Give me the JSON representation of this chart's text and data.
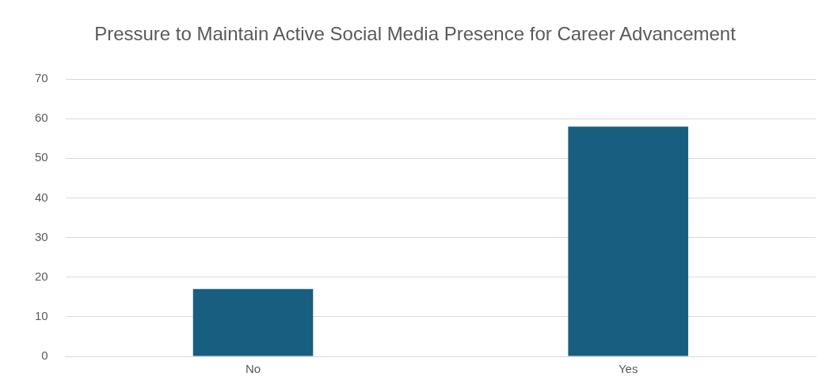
{
  "chart_data": {
    "type": "bar",
    "title": "Pressure to Maintain Active Social Media Presence for Career Advancement",
    "categories": [
      "No",
      "Yes"
    ],
    "values": [
      17,
      58
    ],
    "color": "#175e80",
    "ylim": [
      0,
      70
    ],
    "yticks": [
      0,
      10,
      20,
      30,
      40,
      50,
      60,
      70
    ],
    "grid": "y",
    "legend": false
  }
}
